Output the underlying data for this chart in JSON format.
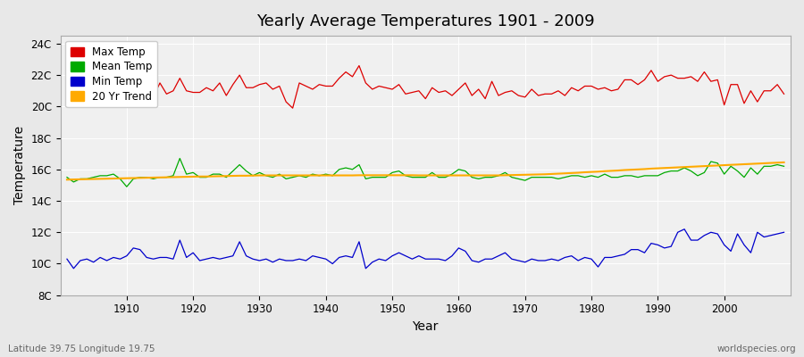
{
  "title": "Yearly Average Temperatures 1901 - 2009",
  "xlabel": "Year",
  "ylabel": "Temperature",
  "lat_lon_label": "Latitude 39.75 Longitude 19.75",
  "source_label": "worldspecies.org",
  "years_start": 1901,
  "years_end": 2009,
  "yticks": [
    8,
    10,
    12,
    14,
    16,
    18,
    20,
    22,
    24
  ],
  "ytick_labels": [
    "8C",
    "10C",
    "12C",
    "14C",
    "16C",
    "18C",
    "20C",
    "22C",
    "24C"
  ],
  "ylim": [
    8,
    24.5
  ],
  "xlim": [
    1900,
    2010
  ],
  "bg_color": "#e8e8e8",
  "plot_bg_color": "#f0f0f0",
  "grid_color": "#ffffff",
  "max_color": "#dd0000",
  "mean_color": "#00aa00",
  "min_color": "#0000cc",
  "trend_color": "#ffaa00",
  "legend_labels": [
    "Max Temp",
    "Mean Temp",
    "Min Temp",
    "20 Yr Trend"
  ],
  "max_temps": [
    20.6,
    20.1,
    20.4,
    20.5,
    20.8,
    20.8,
    21.1,
    21.0,
    20.5,
    20.3,
    21.1,
    20.8,
    21.0,
    20.6,
    21.5,
    20.8,
    21.0,
    21.8,
    21.0,
    20.9,
    20.9,
    21.2,
    21.0,
    21.5,
    20.7,
    21.4,
    22.0,
    21.2,
    21.2,
    21.4,
    21.5,
    21.1,
    21.3,
    20.3,
    19.9,
    21.5,
    21.3,
    21.1,
    21.4,
    21.3,
    21.3,
    21.8,
    22.2,
    21.9,
    22.6,
    21.5,
    21.1,
    21.3,
    21.2,
    21.1,
    21.4,
    20.8,
    20.9,
    21.0,
    20.5,
    21.2,
    20.9,
    21.0,
    20.7,
    21.1,
    21.5,
    20.7,
    21.1,
    20.5,
    21.6,
    20.7,
    20.9,
    21.0,
    20.7,
    20.6,
    21.1,
    20.7,
    20.8,
    20.8,
    21.0,
    20.7,
    21.2,
    21.0,
    21.3,
    21.3,
    21.1,
    21.2,
    21.0,
    21.1,
    21.7,
    21.7,
    21.4,
    21.7,
    22.3,
    21.6,
    21.9,
    22.0,
    21.8,
    21.8,
    21.9,
    21.6,
    22.2,
    21.6,
    21.7,
    20.1,
    21.4,
    21.4,
    20.2,
    21.0,
    20.3,
    21.0,
    21.0,
    21.4,
    20.8
  ],
  "mean_temps": [
    15.5,
    15.2,
    15.4,
    15.4,
    15.5,
    15.6,
    15.6,
    15.7,
    15.4,
    14.9,
    15.4,
    15.5,
    15.5,
    15.4,
    15.5,
    15.5,
    15.6,
    16.7,
    15.7,
    15.8,
    15.5,
    15.5,
    15.7,
    15.7,
    15.5,
    15.9,
    16.3,
    15.9,
    15.6,
    15.8,
    15.6,
    15.5,
    15.7,
    15.4,
    15.5,
    15.6,
    15.5,
    15.7,
    15.6,
    15.7,
    15.6,
    16.0,
    16.1,
    16.0,
    16.3,
    15.4,
    15.5,
    15.5,
    15.5,
    15.8,
    15.9,
    15.6,
    15.5,
    15.5,
    15.5,
    15.8,
    15.5,
    15.5,
    15.7,
    16.0,
    15.9,
    15.5,
    15.4,
    15.5,
    15.5,
    15.6,
    15.8,
    15.5,
    15.4,
    15.3,
    15.5,
    15.5,
    15.5,
    15.5,
    15.4,
    15.5,
    15.6,
    15.6,
    15.5,
    15.6,
    15.5,
    15.7,
    15.5,
    15.5,
    15.6,
    15.6,
    15.5,
    15.6,
    15.6,
    15.6,
    15.8,
    15.9,
    15.9,
    16.1,
    15.9,
    15.6,
    15.8,
    16.5,
    16.4,
    15.7,
    16.2,
    15.9,
    15.5,
    16.1,
    15.7,
    16.2,
    16.2,
    16.3,
    16.2
  ],
  "min_temps": [
    10.3,
    9.7,
    10.2,
    10.3,
    10.1,
    10.4,
    10.2,
    10.4,
    10.3,
    10.5,
    11.0,
    10.9,
    10.4,
    10.3,
    10.4,
    10.4,
    10.3,
    11.5,
    10.4,
    10.7,
    10.2,
    10.3,
    10.4,
    10.3,
    10.4,
    10.5,
    11.4,
    10.5,
    10.3,
    10.2,
    10.3,
    10.1,
    10.3,
    10.2,
    10.2,
    10.3,
    10.2,
    10.5,
    10.4,
    10.3,
    10.0,
    10.4,
    10.5,
    10.4,
    11.4,
    9.7,
    10.1,
    10.3,
    10.2,
    10.5,
    10.7,
    10.5,
    10.3,
    10.5,
    10.3,
    10.3,
    10.3,
    10.2,
    10.5,
    11.0,
    10.8,
    10.2,
    10.1,
    10.3,
    10.3,
    10.5,
    10.7,
    10.3,
    10.2,
    10.1,
    10.3,
    10.2,
    10.2,
    10.3,
    10.2,
    10.4,
    10.5,
    10.2,
    10.4,
    10.3,
    9.8,
    10.4,
    10.4,
    10.5,
    10.6,
    10.9,
    10.9,
    10.7,
    11.3,
    11.2,
    11.0,
    11.1,
    12.0,
    12.2,
    11.5,
    11.5,
    11.8,
    12.0,
    11.9,
    11.2,
    10.8,
    11.9,
    11.2,
    10.7,
    12.0,
    11.7,
    11.8,
    11.9,
    12.0
  ],
  "trend_temps": [
    15.35,
    15.36,
    15.37,
    15.38,
    15.39,
    15.4,
    15.41,
    15.42,
    15.43,
    15.44,
    15.45,
    15.46,
    15.47,
    15.48,
    15.49,
    15.5,
    15.51,
    15.52,
    15.53,
    15.54,
    15.55,
    15.55,
    15.56,
    15.57,
    15.58,
    15.59,
    15.6,
    15.6,
    15.61,
    15.62,
    15.62,
    15.62,
    15.62,
    15.62,
    15.62,
    15.62,
    15.62,
    15.62,
    15.62,
    15.62,
    15.62,
    15.62,
    15.62,
    15.62,
    15.63,
    15.63,
    15.63,
    15.63,
    15.63,
    15.63,
    15.63,
    15.63,
    15.63,
    15.62,
    15.62,
    15.62,
    15.62,
    15.62,
    15.62,
    15.62,
    15.62,
    15.62,
    15.62,
    15.62,
    15.62,
    15.62,
    15.63,
    15.64,
    15.65,
    15.66,
    15.67,
    15.68,
    15.69,
    15.71,
    15.73,
    15.75,
    15.77,
    15.79,
    15.82,
    15.84,
    15.86,
    15.89,
    15.91,
    15.93,
    15.96,
    15.98,
    16.0,
    16.02,
    16.05,
    16.07,
    16.09,
    16.11,
    16.13,
    16.15,
    16.17,
    16.19,
    16.21,
    16.23,
    16.25,
    16.27,
    16.29,
    16.31,
    16.33,
    16.35,
    16.37,
    16.39,
    16.41,
    16.43,
    16.45
  ]
}
